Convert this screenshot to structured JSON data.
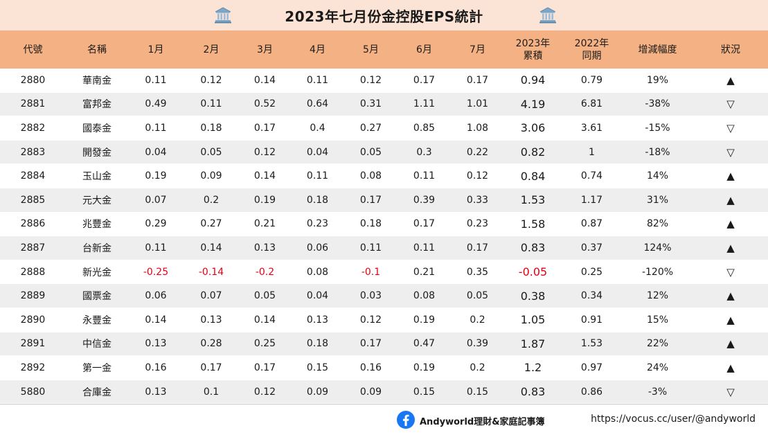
{
  "title": "2023年七月份金控股EPS統計",
  "headers": [
    "代號",
    "名稱",
    "1月",
    "2月",
    "3月",
    "4月",
    "5月",
    "6月",
    "7月",
    "2023年\n累積",
    "2022年\n同期",
    "增減幅度",
    "狀況"
  ],
  "rows": [
    [
      "2880",
      "華南金",
      "0.11",
      "0.12",
      "0.14",
      "0.11",
      "0.12",
      "0.17",
      "0.17",
      "0.94",
      "0.79",
      "19%",
      "▲"
    ],
    [
      "2881",
      "富邦金",
      "0.49",
      "0.11",
      "0.52",
      "0.64",
      "0.31",
      "1.11",
      "1.01",
      "4.19",
      "6.81",
      "-38%",
      "▽"
    ],
    [
      "2882",
      "國泰金",
      "0.11",
      "0.18",
      "0.17",
      "0.4",
      "0.27",
      "0.85",
      "1.08",
      "3.06",
      "3.61",
      "-15%",
      "▽"
    ],
    [
      "2883",
      "開發金",
      "0.04",
      "0.05",
      "0.12",
      "0.04",
      "0.05",
      "0.3",
      "0.22",
      "0.82",
      "1",
      "-18%",
      "▽"
    ],
    [
      "2884",
      "玉山金",
      "0.19",
      "0.09",
      "0.14",
      "0.11",
      "0.08",
      "0.11",
      "0.12",
      "0.84",
      "0.74",
      "14%",
      "▲"
    ],
    [
      "2885",
      "元大金",
      "0.07",
      "0.2",
      "0.19",
      "0.18",
      "0.17",
      "0.39",
      "0.33",
      "1.53",
      "1.17",
      "31%",
      "▲"
    ],
    [
      "2886",
      "兆豐金",
      "0.29",
      "0.27",
      "0.21",
      "0.23",
      "0.18",
      "0.17",
      "0.23",
      "1.58",
      "0.87",
      "82%",
      "▲"
    ],
    [
      "2887",
      "台新金",
      "0.11",
      "0.14",
      "0.13",
      "0.06",
      "0.11",
      "0.11",
      "0.17",
      "0.83",
      "0.37",
      "124%",
      "▲"
    ],
    [
      "2888",
      "新光金",
      "-0.25",
      "-0.14",
      "-0.2",
      "0.08",
      "-0.1",
      "0.21",
      "0.35",
      "-0.05",
      "0.25",
      "-120%",
      "▽"
    ],
    [
      "2889",
      "國票金",
      "0.06",
      "0.07",
      "0.05",
      "0.04",
      "0.03",
      "0.08",
      "0.05",
      "0.38",
      "0.34",
      "12%",
      "▲"
    ],
    [
      "2890",
      "永豐金",
      "0.14",
      "0.13",
      "0.14",
      "0.13",
      "0.12",
      "0.19",
      "0.2",
      "1.05",
      "0.91",
      "15%",
      "▲"
    ],
    [
      "2891",
      "中信金",
      "0.13",
      "0.28",
      "0.25",
      "0.18",
      "0.17",
      "0.47",
      "0.39",
      "1.87",
      "1.53",
      "22%",
      "▲"
    ],
    [
      "2892",
      "第一金",
      "0.16",
      "0.17",
      "0.17",
      "0.15",
      "0.16",
      "0.19",
      "0.2",
      "1.2",
      "0.97",
      "24%",
      "▲"
    ],
    [
      "5880",
      "合庫金",
      "0.13",
      "0.1",
      "0.12",
      "0.09",
      "0.09",
      "0.15",
      "0.15",
      "0.83",
      "0.86",
      "-3%",
      "▽"
    ]
  ],
  "negative_color": "#e60012",
  "footer": {
    "brand": "Andyworld理財&家庭記事簿",
    "url": "https://vocus.cc/user/@andyworld"
  },
  "colors": {
    "title_bg": "#fbe4d6",
    "header_bg": "#f4b183",
    "alt_row_bg": "#eeeeee",
    "facebook_blue": "#1877f2"
  },
  "icons": [
    "bank-icon",
    "facebook-icon"
  ]
}
